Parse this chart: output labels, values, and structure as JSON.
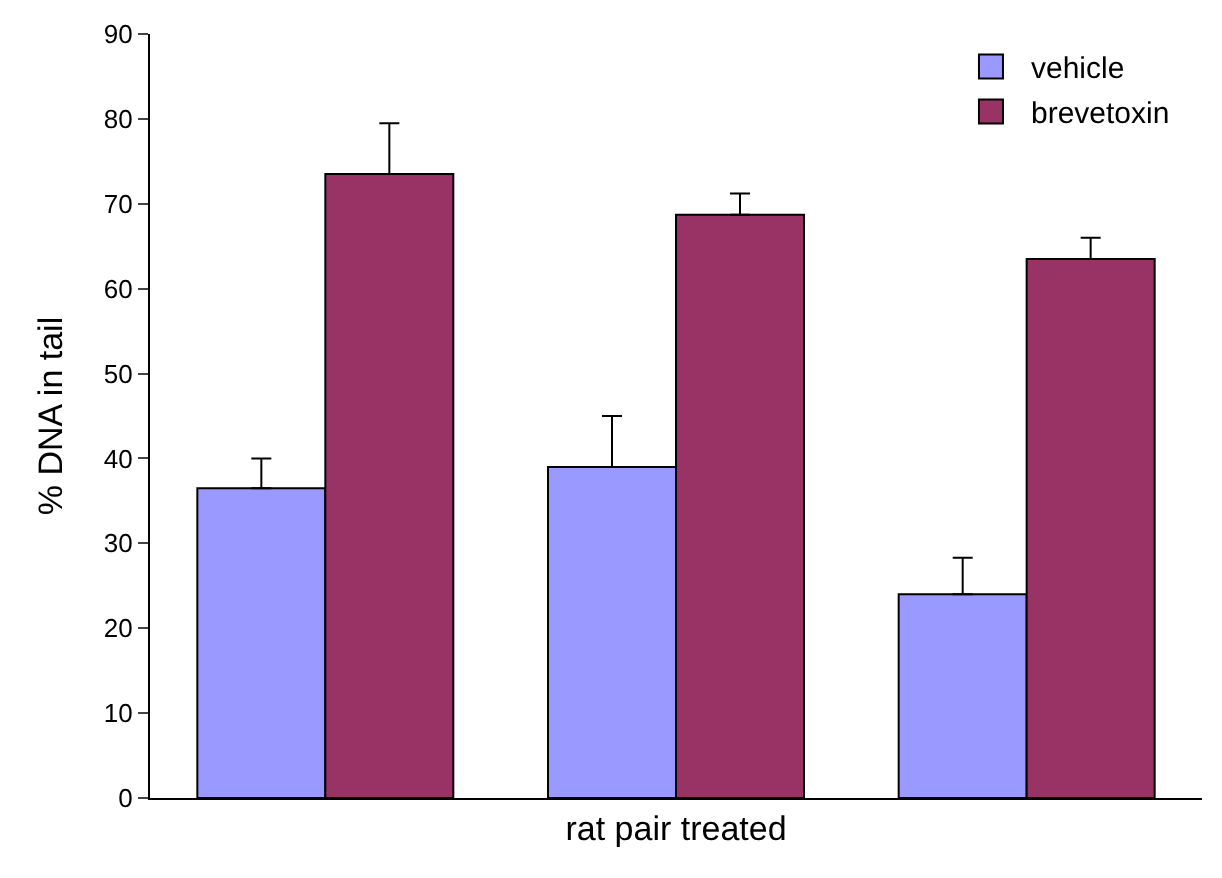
{
  "chart_data": {
    "type": "bar",
    "xlabel": "rat pair treated",
    "ylabel": "% DNA in tail",
    "categories": [
      null,
      null,
      null
    ],
    "series": [
      {
        "name": "vehicle",
        "color": "#9999ff",
        "values": [
          36.5,
          39,
          24
        ],
        "errors": [
          [
            36.5,
            40
          ],
          [
            39,
            45
          ],
          [
            24,
            28.3
          ]
        ]
      },
      {
        "name": "brevetoxin",
        "color": "#993366",
        "values": [
          73.5,
          68.7,
          63.5
        ],
        "errors": [
          [
            73.5,
            79.5
          ],
          [
            68.7,
            71.2
          ],
          [
            63.5,
            66
          ]
        ]
      }
    ],
    "ylim": [
      0,
      90
    ],
    "yticks": [
      0,
      10,
      20,
      30,
      40,
      50,
      60,
      70,
      80,
      90
    ],
    "grid": false,
    "legend": "top right"
  }
}
